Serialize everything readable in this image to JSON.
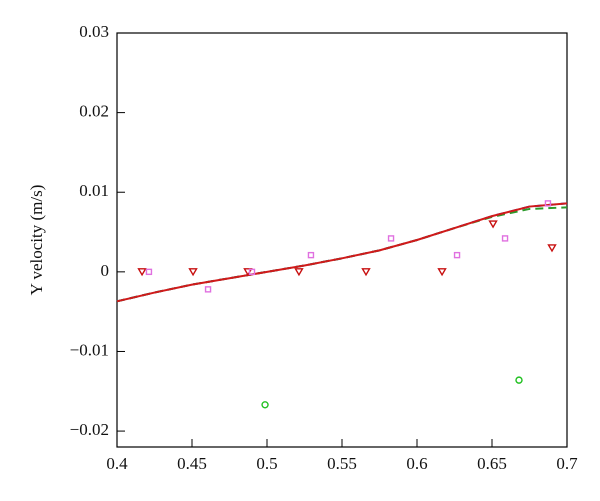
{
  "chart_data": {
    "type": "line",
    "ylabel": "Y velocity (m/s)",
    "xlim": [
      0.4,
      0.7
    ],
    "xticks": [
      0.4,
      0.45,
      0.5,
      0.55,
      0.6,
      0.65,
      0.7
    ],
    "ylim": [
      -0.022,
      0.03
    ],
    "yticks": [
      {
        "value": -0.02,
        "label": "−0.02"
      },
      {
        "value": -0.01,
        "label": "−0.01"
      },
      0,
      0.01,
      0.02,
      0.03
    ],
    "series": [
      {
        "color": "#1a1ad0",
        "style": "dashed",
        "x": [
          0.4,
          0.425,
          0.45,
          0.475,
          0.5,
          0.525,
          0.55,
          0.575,
          0.6,
          0.625,
          0.65,
          0.675,
          0.7
        ],
        "values": [
          -0.0037,
          -0.0026,
          -0.0016,
          -0.0008,
          0.0,
          0.0008,
          0.0017,
          0.0027,
          0.004,
          0.0055,
          0.007,
          0.0082,
          0.0086
        ]
      },
      {
        "color": "#2a9a2a",
        "style": "dashed",
        "x": [
          0.4,
          0.425,
          0.45,
          0.475,
          0.5,
          0.525,
          0.55,
          0.575,
          0.6,
          0.625,
          0.65,
          0.675,
          0.7
        ],
        "values": [
          -0.0037,
          -0.0026,
          -0.0016,
          -0.0008,
          0.0,
          0.0008,
          0.0017,
          0.0027,
          0.004,
          0.0055,
          0.0069,
          0.0079,
          0.0081
        ]
      },
      {
        "color": "#d01a1a",
        "style": "solid",
        "x": [
          0.4,
          0.425,
          0.45,
          0.475,
          0.5,
          0.525,
          0.55,
          0.575,
          0.6,
          0.625,
          0.65,
          0.675,
          0.7
        ],
        "values": [
          -0.0037,
          -0.0026,
          -0.0016,
          -0.0008,
          0.0,
          0.0008,
          0.0017,
          0.0027,
          0.004,
          0.0055,
          0.007,
          0.0082,
          0.0086
        ]
      },
      {
        "color": "#c81010",
        "marker": "triangle-down",
        "x": [
          0.4167,
          0.4507,
          0.4873,
          0.5213,
          0.566,
          0.6167,
          0.6507,
          0.69
        ],
        "values": [
          0,
          0,
          0,
          0,
          0,
          0,
          0.006,
          0.003
        ]
      },
      {
        "color": "#e070e0",
        "marker": "square",
        "x": [
          0.4213,
          0.4607,
          0.49,
          0.5293,
          0.5827,
          0.6267,
          0.6587,
          0.6873
        ],
        "values": [
          0,
          -0.0022,
          0,
          0.0021,
          0.0042,
          0.0021,
          0.0042,
          0.0086
        ]
      },
      {
        "color": "#20c020",
        "marker": "circle",
        "x": [
          0.4987,
          0.668
        ],
        "values": [
          -0.0167,
          -0.0136
        ]
      }
    ]
  }
}
